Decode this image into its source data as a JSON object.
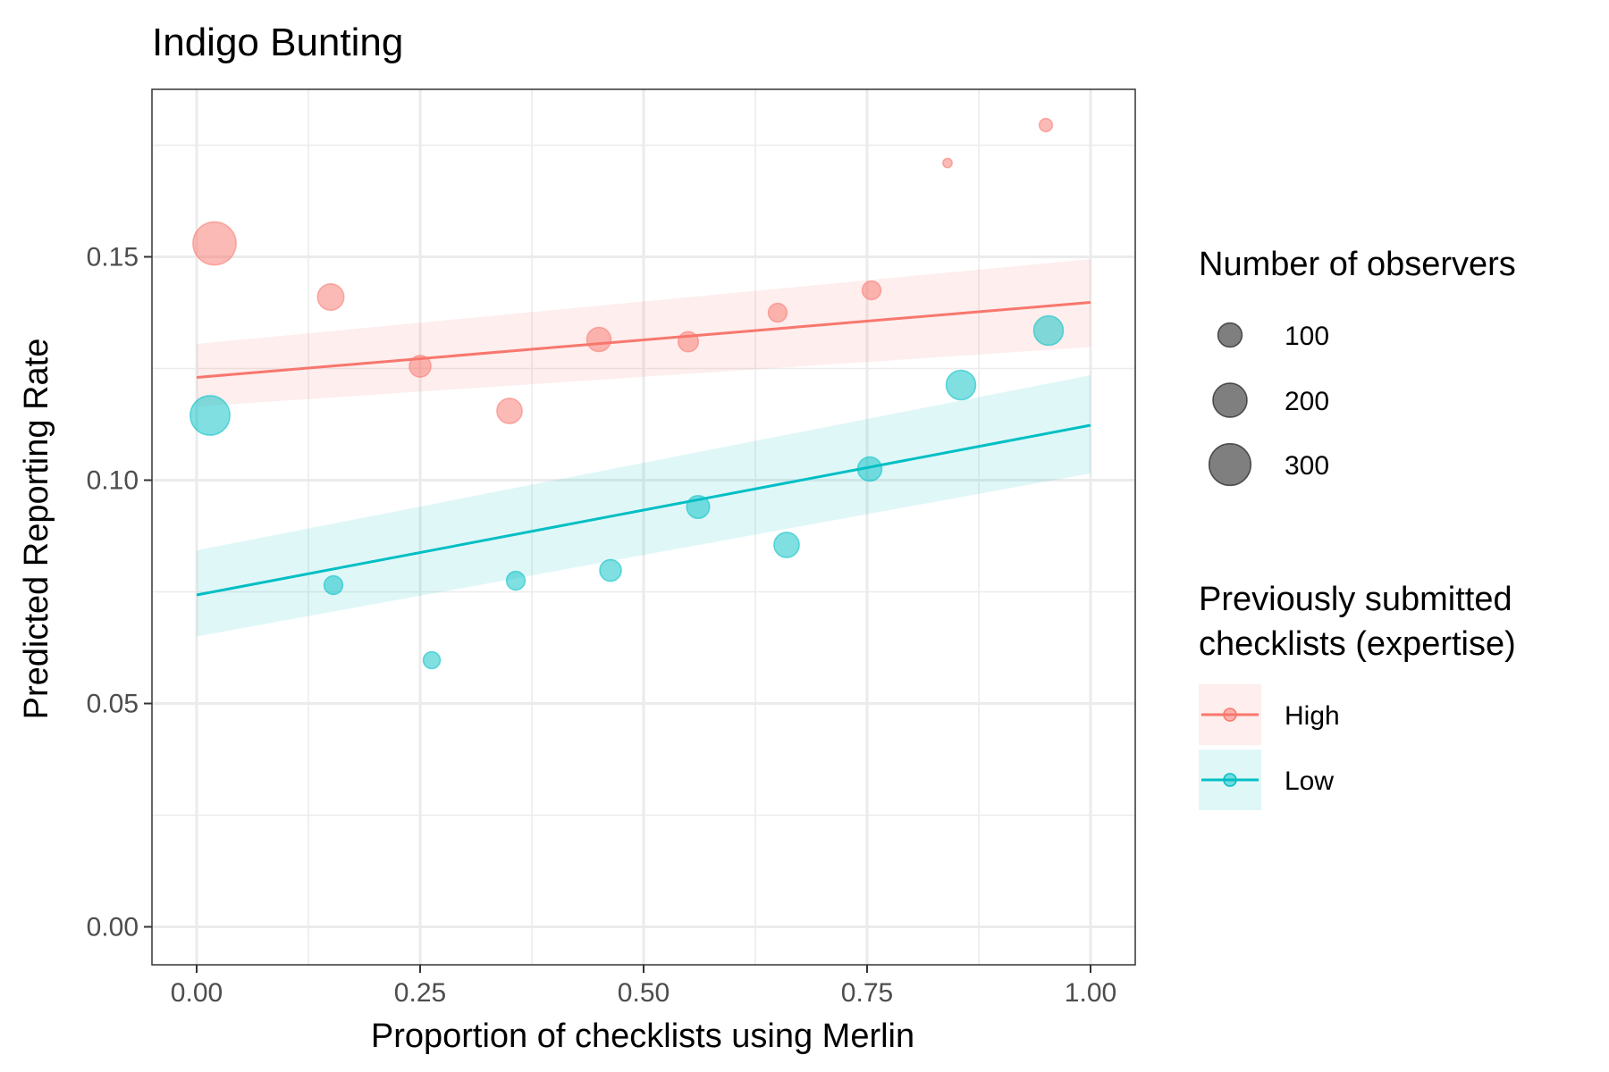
{
  "chart_data": {
    "type": "scatter",
    "title": "Indigo Bunting",
    "xlabel": "Proportion of checklists using Merlin",
    "ylabel": "Predicted Reporting Rate",
    "xlim": [
      -0.05,
      1.05
    ],
    "ylim": [
      -0.0085,
      0.1875
    ],
    "x_ticks": [
      0.0,
      0.25,
      0.5,
      0.75,
      1.0
    ],
    "x_tick_labels": [
      "0.00",
      "0.25",
      "0.50",
      "0.75",
      "1.00"
    ],
    "y_ticks": [
      0.0,
      0.05,
      0.1,
      0.15
    ],
    "y_tick_labels": [
      "0.00",
      "0.05",
      "0.10",
      "0.15"
    ],
    "grid": true,
    "series": [
      {
        "name": "High",
        "color": "#F8766D",
        "points": [
          {
            "x": 0.02,
            "y": 0.153,
            "n": 320
          },
          {
            "x": 0.15,
            "y": 0.141,
            "n": 120
          },
          {
            "x": 0.25,
            "y": 0.1255,
            "n": 80
          },
          {
            "x": 0.35,
            "y": 0.1155,
            "n": 110
          },
          {
            "x": 0.45,
            "y": 0.1315,
            "n": 100
          },
          {
            "x": 0.55,
            "y": 0.131,
            "n": 70
          },
          {
            "x": 0.65,
            "y": 0.1375,
            "n": 60
          },
          {
            "x": 0.755,
            "y": 0.1425,
            "n": 60
          },
          {
            "x": 0.84,
            "y": 0.171,
            "n": 15
          },
          {
            "x": 0.95,
            "y": 0.1795,
            "n": 30
          }
        ],
        "trend": {
          "x0": 0.0,
          "y0": 0.123,
          "x1": 1.0,
          "y1": 0.1398
        },
        "band": {
          "lower0": 0.1165,
          "upper0": 0.1305,
          "lower1": 0.1298,
          "upper1": 0.1495
        }
      },
      {
        "name": "Low",
        "color": "#00BFC4",
        "points": [
          {
            "x": 0.015,
            "y": 0.1145,
            "n": 270
          },
          {
            "x": 0.153,
            "y": 0.0765,
            "n": 60
          },
          {
            "x": 0.263,
            "y": 0.0597,
            "n": 50
          },
          {
            "x": 0.357,
            "y": 0.0775,
            "n": 60
          },
          {
            "x": 0.463,
            "y": 0.0798,
            "n": 80
          },
          {
            "x": 0.561,
            "y": 0.094,
            "n": 90
          },
          {
            "x": 0.66,
            "y": 0.0855,
            "n": 110
          },
          {
            "x": 0.753,
            "y": 0.1025,
            "n": 100
          },
          {
            "x": 0.855,
            "y": 0.1213,
            "n": 150
          },
          {
            "x": 0.953,
            "y": 0.1335,
            "n": 150
          }
        ],
        "trend": {
          "x0": 0.0,
          "y0": 0.0743,
          "x1": 1.0,
          "y1": 0.1123
        },
        "band": {
          "lower0": 0.065,
          "upper0": 0.0843,
          "lower1": 0.1015,
          "upper1": 0.1235
        }
      }
    ],
    "legend_size": {
      "title": "Number of observers",
      "entries": [
        {
          "label": "100",
          "n": 100
        },
        {
          "label": "200",
          "n": 200
        },
        {
          "label": "300",
          "n": 300
        }
      ]
    },
    "legend_color": {
      "title_lines": [
        "Previously submitted",
        "checklists (expertise)"
      ],
      "entries": [
        {
          "label": "High",
          "color": "#F8766D"
        },
        {
          "label": "Low",
          "color": "#00BFC4"
        }
      ]
    },
    "legend_placement": "right"
  }
}
